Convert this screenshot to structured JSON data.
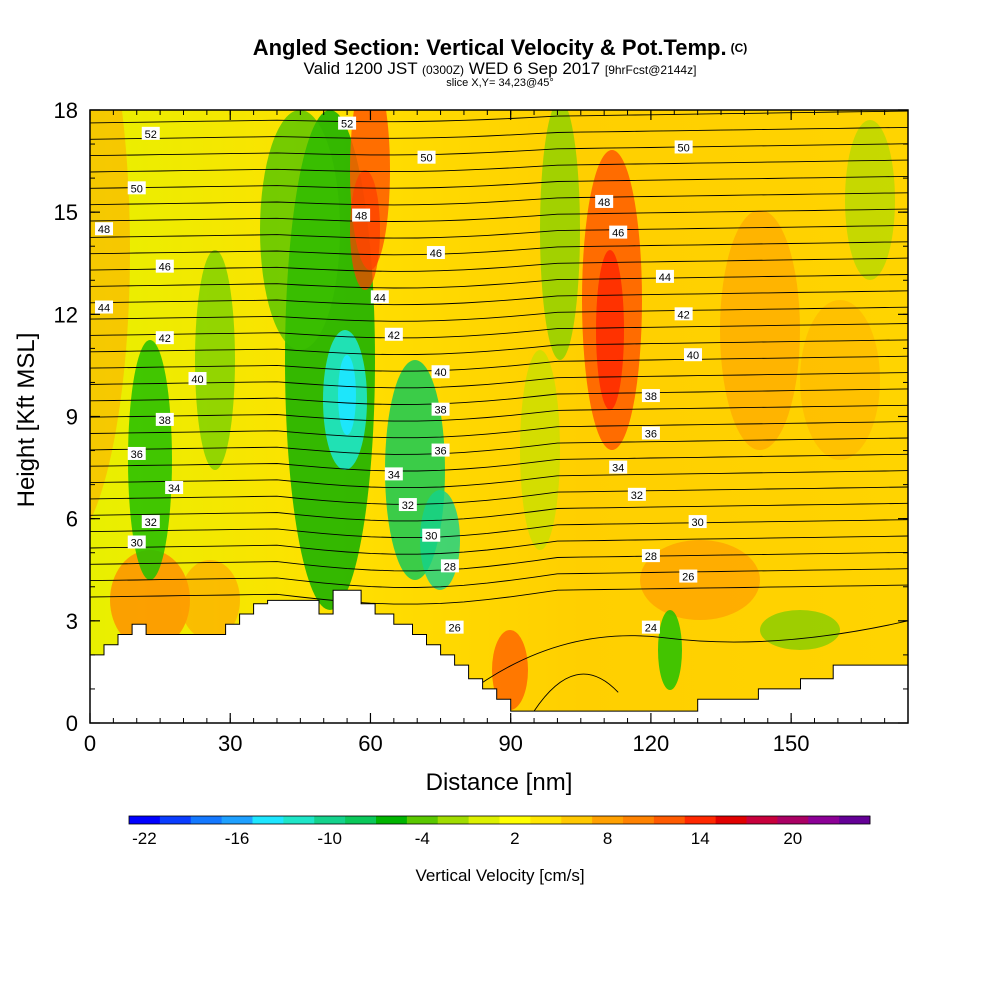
{
  "header": {
    "title": "Angled Section: Vertical Velocity & Pot.Temp.",
    "title_tag": "(C)",
    "subtitle_a": "Valid 1200 JST",
    "subtitle_b": "(0300Z)",
    "subtitle_c": "WED 6 Sep 2017",
    "subtitle_d": "[9hrFcst@2144z]",
    "slice": "slice X,Y= 34,23@45°"
  },
  "chart_data": {
    "type": "heatmap",
    "xlabel": "Distance [nm]",
    "ylabel": "Height [Kft MSL]",
    "xlim": [
      0,
      175
    ],
    "ylim": [
      0,
      18
    ],
    "xticks": [
      "0",
      "30",
      "60",
      "90",
      "120",
      "150"
    ],
    "yticks": [
      "0",
      "3",
      "6",
      "9",
      "12",
      "15",
      "18"
    ],
    "colorbar": {
      "label": "Vertical Velocity [cm/s]",
      "tick_labels": [
        "-22",
        "-16",
        "-10",
        "-4",
        "2",
        "8",
        "14",
        "20"
      ],
      "colors": [
        "#0000ff",
        "#0a3cff",
        "#1478ff",
        "#1ea0ff",
        "#1ee6ff",
        "#1ee6c8",
        "#14d28c",
        "#0ac85a",
        "#00b400",
        "#5ac800",
        "#a0dc00",
        "#dcf000",
        "#ffff00",
        "#ffe600",
        "#ffc800",
        "#ffa000",
        "#ff8200",
        "#ff5a00",
        "#ff2800",
        "#e10000",
        "#c8003c",
        "#aa0064",
        "#8c0096",
        "#640096"
      ]
    },
    "theta_contours": [
      {
        "label": "24",
        "x": 120,
        "y": 2.8
      },
      {
        "label": "26",
        "x": 128,
        "y": 4.3
      },
      {
        "label": "26",
        "x": 78,
        "y": 2.8
      },
      {
        "label": "28",
        "x": 77,
        "y": 4.6
      },
      {
        "label": "28",
        "x": 120,
        "y": 4.9
      },
      {
        "label": "30",
        "x": 10,
        "y": 5.3
      },
      {
        "label": "30",
        "x": 73,
        "y": 5.5
      },
      {
        "label": "30",
        "x": 130,
        "y": 5.9
      },
      {
        "label": "32",
        "x": 13,
        "y": 5.9
      },
      {
        "label": "32",
        "x": 68,
        "y": 6.4
      },
      {
        "label": "32",
        "x": 117,
        "y": 6.7
      },
      {
        "label": "34",
        "x": 18,
        "y": 6.9
      },
      {
        "label": "34",
        "x": 65,
        "y": 7.3
      },
      {
        "label": "34",
        "x": 113,
        "y": 7.5
      },
      {
        "label": "36",
        "x": 10,
        "y": 7.9
      },
      {
        "label": "36",
        "x": 75,
        "y": 8.0
      },
      {
        "label": "36",
        "x": 120,
        "y": 8.5
      },
      {
        "label": "38",
        "x": 16,
        "y": 8.9
      },
      {
        "label": "38",
        "x": 75,
        "y": 9.2
      },
      {
        "label": "38",
        "x": 120,
        "y": 9.6
      },
      {
        "label": "40",
        "x": 23,
        "y": 10.1
      },
      {
        "label": "40",
        "x": 75,
        "y": 10.3
      },
      {
        "label": "40",
        "x": 129,
        "y": 10.8
      },
      {
        "label": "42",
        "x": 16,
        "y": 11.3
      },
      {
        "label": "42",
        "x": 65,
        "y": 11.4
      },
      {
        "label": "42",
        "x": 127,
        "y": 12.0
      },
      {
        "label": "44",
        "x": 3,
        "y": 12.2
      },
      {
        "label": "44",
        "x": 62,
        "y": 12.5
      },
      {
        "label": "44",
        "x": 123,
        "y": 13.1
      },
      {
        "label": "46",
        "x": 16,
        "y": 13.4
      },
      {
        "label": "46",
        "x": 74,
        "y": 13.8
      },
      {
        "label": "46",
        "x": 113,
        "y": 14.4
      },
      {
        "label": "48",
        "x": 3,
        "y": 14.5
      },
      {
        "label": "48",
        "x": 58,
        "y": 14.9
      },
      {
        "label": "48",
        "x": 110,
        "y": 15.3
      },
      {
        "label": "50",
        "x": 10,
        "y": 15.7
      },
      {
        "label": "50",
        "x": 72,
        "y": 16.6
      },
      {
        "label": "50",
        "x": 127,
        "y": 16.9
      },
      {
        "label": "52",
        "x": 13,
        "y": 17.3
      },
      {
        "label": "52",
        "x": 55,
        "y": 17.6
      }
    ],
    "terrain": [
      [
        0,
        2
      ],
      [
        3,
        2
      ],
      [
        3,
        2.3
      ],
      [
        6,
        2.3
      ],
      [
        6,
        2.6
      ],
      [
        9,
        2.6
      ],
      [
        9,
        2.9
      ],
      [
        12,
        2.9
      ],
      [
        12,
        2.6
      ],
      [
        29,
        2.6
      ],
      [
        29,
        2.9
      ],
      [
        32,
        2.9
      ],
      [
        32,
        3.2
      ],
      [
        35,
        3.2
      ],
      [
        35,
        3.5
      ],
      [
        38,
        3.5
      ],
      [
        38,
        3.6
      ],
      [
        49,
        3.6
      ],
      [
        49,
        3.2
      ],
      [
        52,
        3.2
      ],
      [
        52,
        3.9
      ],
      [
        58,
        3.9
      ],
      [
        58,
        3.5
      ],
      [
        61,
        3.5
      ],
      [
        61,
        3.2
      ],
      [
        65,
        3.2
      ],
      [
        65,
        2.9
      ],
      [
        69,
        2.9
      ],
      [
        69,
        2.6
      ],
      [
        72,
        2.6
      ],
      [
        72,
        2.3
      ],
      [
        75,
        2.3
      ],
      [
        75,
        2.0
      ],
      [
        78,
        2.0
      ],
      [
        78,
        1.7
      ],
      [
        81,
        1.7
      ],
      [
        81,
        1.3
      ],
      [
        84,
        1.3
      ],
      [
        84,
        1.0
      ],
      [
        87,
        1.0
      ],
      [
        87,
        0.7
      ],
      [
        90,
        0.7
      ],
      [
        90,
        0.35
      ],
      [
        130,
        0.35
      ],
      [
        130,
        0.7
      ],
      [
        143,
        0.7
      ],
      [
        143,
        1.0
      ],
      [
        152,
        1.0
      ],
      [
        152,
        1.3
      ],
      [
        159,
        1.3
      ],
      [
        159,
        1.7
      ],
      [
        175,
        1.7
      ]
    ]
  }
}
